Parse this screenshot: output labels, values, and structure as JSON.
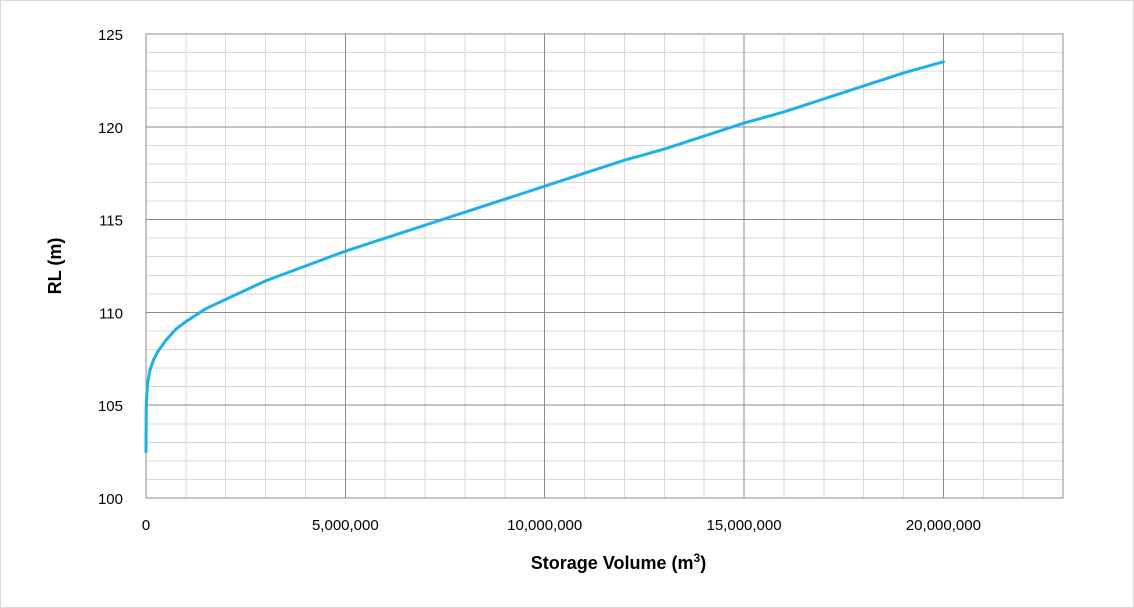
{
  "chart_data": {
    "type": "line",
    "title": "",
    "xlabel": "Storage Volume (m",
    "xlabel_sup": "3",
    "xlabel_suffix": ")",
    "ylabel": "RL (m)",
    "xlim": [
      0,
      23000000
    ],
    "ylim": [
      100,
      125
    ],
    "x_major_ticks": [
      0,
      5000000,
      10000000,
      15000000,
      20000000
    ],
    "x_tick_labels": [
      "0",
      "5,000,000",
      "10,000,000",
      "15,000,000",
      "20,000,000"
    ],
    "y_major_ticks": [
      100,
      105,
      110,
      115,
      120,
      125
    ],
    "y_tick_labels": [
      "100",
      "105",
      "110",
      "115",
      "120",
      "125"
    ],
    "x_minor_step": 1000000,
    "y_minor_step": 1,
    "grid": true,
    "legend": "none",
    "series": [
      {
        "color": "#1fb0e8",
        "x": [
          0,
          5000,
          20000,
          50000,
          100000,
          200000,
          300000,
          500000,
          750000,
          1000000,
          1500000,
          2000000,
          2500000,
          3000000,
          4000000,
          5000000,
          6000000,
          7000000,
          8000000,
          9000000,
          10000000,
          11000000,
          12000000,
          13000000,
          14000000,
          15000000,
          16000000,
          17000000,
          18000000,
          19000000,
          20000000
        ],
        "y": [
          102.5,
          104.8,
          105.6,
          106.3,
          106.9,
          107.5,
          107.9,
          108.5,
          109.1,
          109.5,
          110.2,
          110.7,
          111.2,
          111.7,
          112.5,
          113.3,
          114.0,
          114.7,
          115.4,
          116.1,
          116.8,
          117.5,
          118.2,
          118.8,
          119.5,
          120.2,
          120.8,
          121.5,
          122.2,
          122.9,
          123.5
        ]
      }
    ]
  }
}
